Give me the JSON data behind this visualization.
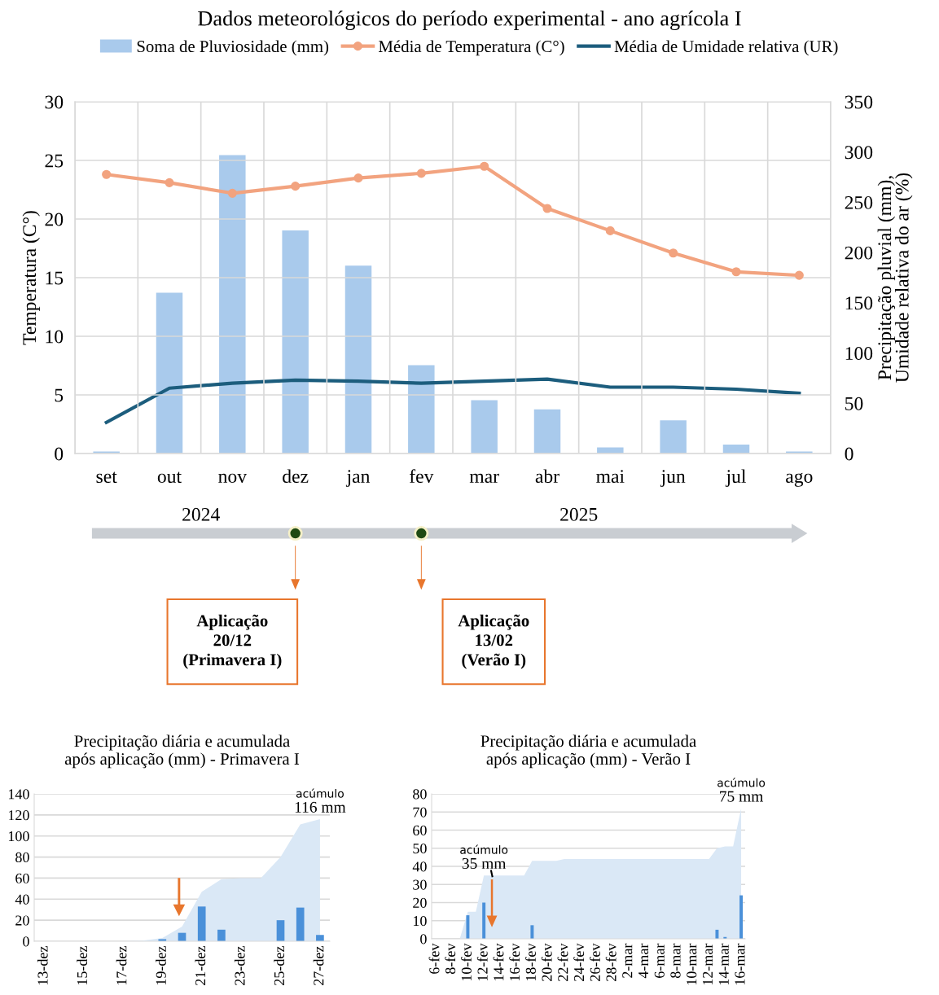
{
  "chart_data": [
    {
      "type": "bar",
      "title": "Dados meteorológicos do período experimental - ano agrícola I",
      "ylabel": "Temperatura (C°)",
      "y2label": "Precipitação pluvial (mm),\nUmidade relativa do ar (%)",
      "categories": [
        "set",
        "out",
        "nov",
        "dez",
        "jan",
        "fev",
        "mar",
        "abr",
        "mai",
        "jun",
        "jul",
        "ago"
      ],
      "series": [
        {
          "name": "Soma de Pluviosidade (mm)",
          "axis": "y2",
          "color": "#a9caec",
          "values": [
            2,
            160,
            297,
            222,
            187,
            88,
            53,
            44,
            6,
            33,
            9,
            2
          ]
        },
        {
          "name": "Média de Temperatura (C°)",
          "type": "line",
          "axis": "y",
          "color": "#f2a37f",
          "marker": "circle",
          "values": [
            23.8,
            23.1,
            22.2,
            22.8,
            23.5,
            23.9,
            24.5,
            20.9,
            19.0,
            17.1,
            15.5,
            15.2
          ]
        },
        {
          "name": "Média de Umidade relativa (UR)",
          "type": "line",
          "axis": "y2",
          "color": "#1c5d7d",
          "marker": "none",
          "values": [
            31,
            65,
            70,
            73,
            72,
            70,
            72,
            74,
            66,
            66,
            64,
            60
          ]
        }
      ],
      "ylim": [
        0,
        30
      ],
      "yticks": [
        0,
        5,
        10,
        15,
        20,
        25,
        30
      ],
      "y2lim": [
        0,
        350
      ],
      "y2ticks": [
        0,
        50,
        100,
        150,
        200,
        250,
        300,
        350
      ],
      "grid": true,
      "legend": "top",
      "annotations": [
        "2024",
        "2025",
        "Aplicação\n20/12\n(Primavera I)",
        "Aplicação\n13/02\n(Verão I)"
      ]
    },
    {
      "type": "area",
      "title": "Precipitação diária e acumulada\napós aplicação (mm) - Primavera I",
      "categories": [
        "13-dez",
        null,
        "15-dez",
        null,
        "17-dez",
        null,
        "19-dez",
        null,
        "21-dez",
        null,
        "23-dez",
        null,
        "25-dez",
        null,
        "27-dez"
      ],
      "series": [
        {
          "color": "#dae8f6",
          "values": [
            0,
            0,
            0,
            0,
            0,
            0.5,
            3,
            14,
            47,
            59,
            60,
            60,
            80,
            111,
            116
          ]
        },
        {
          "type": "bar",
          "color": "#4a90d9",
          "values": [
            0,
            0,
            0,
            0,
            0,
            0,
            2,
            8,
            33,
            11,
            0,
            0,
            20,
            32,
            6
          ]
        }
      ],
      "ylim": [
        0,
        140
      ],
      "yticks": [
        0,
        20,
        40,
        60,
        80,
        100,
        120,
        140
      ],
      "grid": "y",
      "annotations": [
        {
          "text": "116 mm",
          "x": "27-dez",
          "y": 116
        },
        {
          "text": "acúmulo",
          "x": "27-dez",
          "y": 116
        }
      ]
    },
    {
      "type": "area",
      "title": "Precipitação diária e acumulada\napós aplicação (mm) - Verão I",
      "categories": [
        "6-fev",
        null,
        "8-fev",
        null,
        "10-fev",
        null,
        "12-fev",
        null,
        "14-fev",
        null,
        "16-fev",
        null,
        "18-fev",
        null,
        "20-fev",
        null,
        "22-fev",
        null,
        "24-fev",
        null,
        "26-fev",
        null,
        "28-fev",
        null,
        "2-mar",
        null,
        "4-mar",
        null,
        "6-mar",
        null,
        "8-mar",
        null,
        "10-mar",
        null,
        "12-mar",
        null,
        "14-mar",
        null,
        "16-mar"
      ],
      "series": [
        {
          "color": "#dae8f6",
          "values": [
            0,
            0,
            0,
            0,
            15,
            15,
            35,
            35,
            35,
            35,
            35,
            35,
            43,
            43,
            43,
            43,
            44,
            44,
            44,
            44,
            44,
            44,
            44,
            44,
            44,
            44,
            44,
            44,
            44,
            44,
            44,
            44,
            44,
            44,
            44,
            50,
            51,
            51,
            72
          ]
        },
        {
          "type": "bar",
          "color": "#4a90d9",
          "values": [
            0,
            0,
            0,
            0,
            13,
            0,
            20,
            0,
            0,
            0,
            0,
            0,
            7.5,
            0,
            0,
            0,
            0,
            0,
            0,
            0,
            0,
            0,
            0,
            0,
            0,
            0,
            0,
            0,
            0,
            0,
            0,
            0,
            0,
            0,
            0,
            5,
            1,
            0,
            24
          ]
        }
      ],
      "ylim": [
        0,
        80
      ],
      "yticks": [
        0,
        10,
        20,
        30,
        40,
        50,
        60,
        70,
        80
      ],
      "grid": "y",
      "annotations": [
        {
          "text": "35 mm",
          "x": "12-fev",
          "y": 35
        },
        {
          "text": "acúmulo",
          "x": "12-fev",
          "y": 35
        },
        {
          "text": "75 mm",
          "x": "16-mar",
          "y": 72
        },
        {
          "text": "acúmulo",
          "x": "16-mar",
          "y": 72
        }
      ]
    }
  ]
}
